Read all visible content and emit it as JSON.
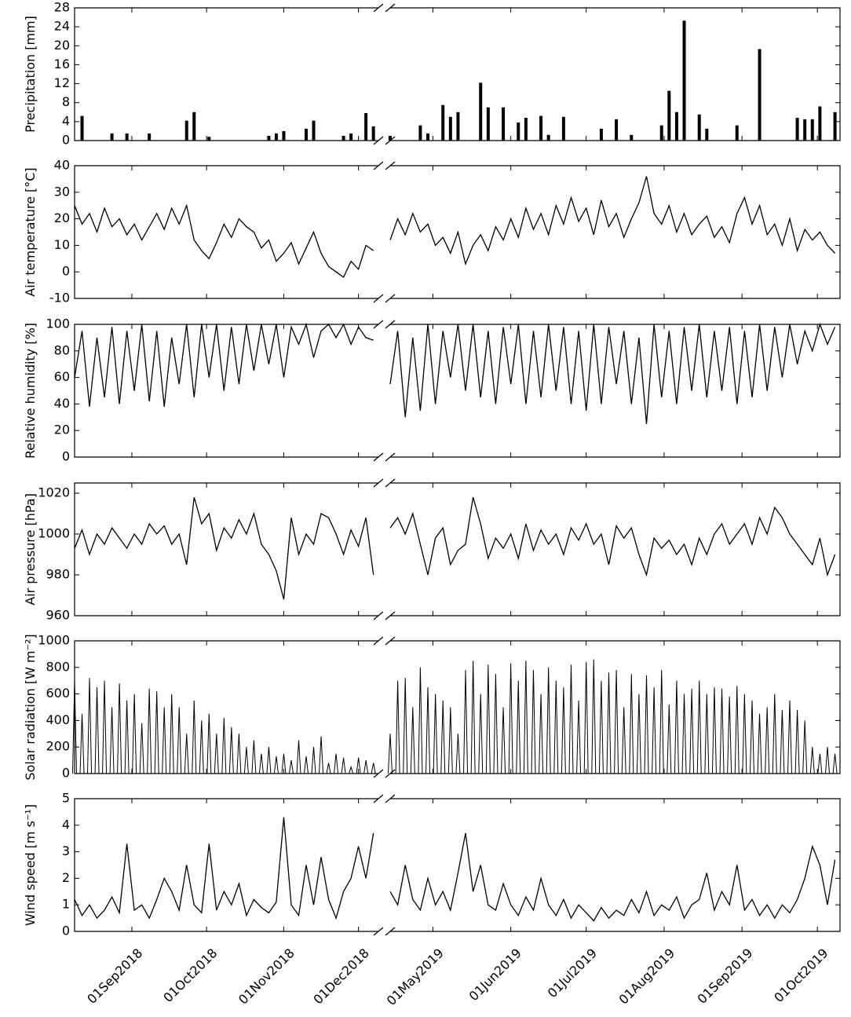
{
  "chart_data": {
    "x": [
      "2018-08-09",
      "2018-08-12",
      "2018-08-15",
      "2018-08-18",
      "2018-08-21",
      "2018-08-24",
      "2018-08-27",
      "2018-08-30",
      "2018-09-02",
      "2018-09-05",
      "2018-09-08",
      "2018-09-11",
      "2018-09-14",
      "2018-09-17",
      "2018-09-20",
      "2018-09-23",
      "2018-09-26",
      "2018-09-29",
      "2018-10-02",
      "2018-10-05",
      "2018-10-08",
      "2018-10-11",
      "2018-10-14",
      "2018-10-17",
      "2018-10-20",
      "2018-10-23",
      "2018-10-26",
      "2018-10-29",
      "2018-11-01",
      "2018-11-04",
      "2018-11-07",
      "2018-11-10",
      "2018-11-13",
      "2018-11-16",
      "2018-11-19",
      "2018-11-22",
      "2018-11-25",
      "2018-11-28",
      "2018-12-01",
      "2018-12-04",
      "2018-12-07",
      "2019-04-14",
      "2019-04-17",
      "2019-04-20",
      "2019-04-23",
      "2019-04-26",
      "2019-04-29",
      "2019-05-02",
      "2019-05-05",
      "2019-05-08",
      "2019-05-11",
      "2019-05-14",
      "2019-05-17",
      "2019-05-20",
      "2019-05-23",
      "2019-05-26",
      "2019-05-29",
      "2019-06-01",
      "2019-06-04",
      "2019-06-07",
      "2019-06-10",
      "2019-06-13",
      "2019-06-16",
      "2019-06-19",
      "2019-06-22",
      "2019-06-25",
      "2019-06-28",
      "2019-07-01",
      "2019-07-04",
      "2019-07-07",
      "2019-07-10",
      "2019-07-13",
      "2019-07-16",
      "2019-07-19",
      "2019-07-22",
      "2019-07-25",
      "2019-07-28",
      "2019-07-31",
      "2019-08-03",
      "2019-08-06",
      "2019-08-09",
      "2019-08-12",
      "2019-08-15",
      "2019-08-18",
      "2019-08-21",
      "2019-08-24",
      "2019-08-27",
      "2019-08-30",
      "2019-09-02",
      "2019-09-05",
      "2019-09-08",
      "2019-09-11",
      "2019-09-14",
      "2019-09-17",
      "2019-09-20",
      "2019-09-23",
      "2019-09-26",
      "2019-09-29",
      "2019-10-02",
      "2019-10-05",
      "2019-10-08"
    ],
    "xsegments": [
      [
        "2018-08-09",
        "2018-12-09"
      ],
      [
        "2019-04-14",
        "2019-10-10"
      ]
    ],
    "xticks": [
      {
        "value": "2018-09-01",
        "label": "01Sep2018"
      },
      {
        "value": "2018-10-01",
        "label": "01Oct2018"
      },
      {
        "value": "2018-11-01",
        "label": "01Nov2018"
      },
      {
        "value": "2018-12-01",
        "label": "01Dec2018"
      },
      {
        "value": "2019-05-01",
        "label": "01May2019"
      },
      {
        "value": "2019-06-01",
        "label": "01Jun2019"
      },
      {
        "value": "2019-07-01",
        "label": "01Jul2019"
      },
      {
        "value": "2019-08-01",
        "label": "01Aug2019"
      },
      {
        "value": "2019-09-01",
        "label": "01Sep2019"
      },
      {
        "value": "2019-10-01",
        "label": "01Oct2019"
      }
    ],
    "panels": [
      {
        "type": "bar",
        "ylabel": "Precipitation [mm]",
        "color": "#000000",
        "ylim": [
          0,
          28
        ],
        "yticks": [
          0,
          4,
          8,
          12,
          16,
          20,
          24,
          28
        ],
        "values": [
          0,
          5.2,
          0,
          0,
          0,
          1.5,
          0,
          1.5,
          0,
          0,
          1.5,
          0,
          0,
          0,
          0,
          4.2,
          6.0,
          0,
          0.8,
          0,
          0,
          0,
          0,
          0,
          0,
          0,
          1.0,
          1.5,
          2.0,
          0,
          0,
          2.5,
          4.2,
          0,
          0,
          0,
          1.0,
          1.5,
          0,
          5.8,
          3.0,
          1.0,
          0,
          0,
          0,
          3.2,
          1.5,
          0,
          7.5,
          5.0,
          6.0,
          0,
          0,
          12.2,
          7.0,
          0,
          7.0,
          0,
          3.8,
          4.8,
          0,
          5.2,
          1.2,
          0,
          5.0,
          0,
          0,
          0,
          0,
          2.5,
          0,
          4.5,
          0,
          1.2,
          0,
          0,
          0,
          3.2,
          10.5,
          6.0,
          25.3,
          0,
          5.5,
          2.5,
          0,
          0,
          0,
          3.2,
          0,
          0,
          19.3,
          0,
          0,
          0,
          0,
          4.8,
          4.5,
          4.5,
          7.2,
          0,
          6.0
        ]
      },
      {
        "type": "line",
        "ylabel": "Air temperature [°C]",
        "color": "#000000",
        "ylim": [
          -10,
          40
        ],
        "yticks": [
          -10,
          0,
          10,
          20,
          30,
          40
        ],
        "values": [
          25,
          18,
          22,
          15,
          24,
          17,
          20,
          14,
          18,
          12,
          17,
          22,
          16,
          24,
          18,
          25,
          12,
          8,
          5,
          11,
          18,
          13,
          20,
          17,
          15,
          9,
          12,
          4,
          7,
          11,
          3,
          9,
          15,
          7,
          2,
          0,
          -2,
          4,
          1,
          10,
          8,
          12,
          20,
          14,
          22,
          15,
          18,
          10,
          13,
          7,
          15,
          3,
          10,
          14,
          8,
          17,
          12,
          20,
          13,
          24,
          16,
          22,
          14,
          25,
          18,
          28,
          19,
          24,
          14,
          27,
          17,
          22,
          13,
          20,
          26,
          36,
          22,
          18,
          25,
          15,
          22,
          14,
          18,
          21,
          13,
          17,
          11,
          22,
          28,
          18,
          25,
          14,
          18,
          10,
          20,
          8,
          16,
          12,
          15,
          10,
          7
        ]
      },
      {
        "type": "line",
        "ylabel": "Relative humidity [%]",
        "color": "#000000",
        "ylim": [
          0,
          100
        ],
        "yticks": [
          0,
          20,
          40,
          60,
          80,
          100
        ],
        "values": [
          60,
          95,
          38,
          90,
          45,
          98,
          40,
          95,
          50,
          100,
          42,
          95,
          38,
          90,
          55,
          100,
          45,
          100,
          60,
          100,
          50,
          98,
          55,
          100,
          65,
          100,
          70,
          100,
          60,
          98,
          85,
          100,
          75,
          95,
          100,
          90,
          100,
          85,
          98,
          90,
          88,
          55,
          95,
          30,
          90,
          35,
          100,
          40,
          95,
          60,
          100,
          50,
          100,
          45,
          95,
          40,
          98,
          55,
          100,
          40,
          95,
          45,
          100,
          50,
          98,
          40,
          95,
          35,
          100,
          40,
          98,
          55,
          95,
          40,
          90,
          25,
          100,
          45,
          95,
          40,
          98,
          50,
          100,
          45,
          95,
          50,
          98,
          40,
          95,
          45,
          100,
          50,
          98,
          60,
          100,
          70,
          95,
          80,
          100,
          85,
          98
        ]
      },
      {
        "type": "line",
        "ylabel": "Air pressure [hPa]",
        "color": "#000000",
        "ylim": [
          960,
          1025
        ],
        "yticks": [
          960,
          980,
          1000,
          1020
        ],
        "values": [
          993,
          1002,
          990,
          1000,
          995,
          1003,
          998,
          993,
          1000,
          995,
          1005,
          1000,
          1004,
          995,
          1000,
          985,
          1018,
          1005,
          1010,
          992,
          1003,
          998,
          1007,
          1000,
          1010,
          995,
          990,
          982,
          968,
          1008,
          990,
          1000,
          995,
          1010,
          1008,
          1000,
          990,
          1002,
          994,
          1008,
          980,
          1003,
          1008,
          1000,
          1010,
          995,
          980,
          998,
          1003,
          985,
          992,
          995,
          1018,
          1005,
          988,
          998,
          993,
          1000,
          988,
          1005,
          992,
          1002,
          995,
          1000,
          990,
          1003,
          997,
          1005,
          995,
          1000,
          985,
          1004,
          998,
          1003,
          990,
          980,
          998,
          993,
          997,
          990,
          995,
          985,
          998,
          990,
          1000,
          1005,
          995,
          1000,
          1005,
          995,
          1008,
          1000,
          1013,
          1008,
          1000,
          995,
          990,
          985,
          998,
          980,
          990
        ]
      },
      {
        "type": "spike",
        "ylabel": "Solar radiation [W m⁻²]",
        "color": "#000000",
        "ylim": [
          0,
          1000
        ],
        "yticks": [
          0,
          200,
          400,
          600,
          800,
          1000
        ],
        "values": [
          700,
          450,
          720,
          650,
          700,
          500,
          680,
          550,
          600,
          380,
          640,
          620,
          500,
          600,
          500,
          300,
          550,
          400,
          450,
          300,
          420,
          350,
          300,
          200,
          250,
          150,
          200,
          130,
          150,
          100,
          250,
          130,
          200,
          280,
          80,
          150,
          120,
          50,
          120,
          100,
          80,
          300,
          700,
          720,
          500,
          800,
          650,
          600,
          550,
          500,
          300,
          780,
          850,
          600,
          820,
          750,
          500,
          830,
          700,
          850,
          780,
          600,
          800,
          700,
          650,
          820,
          550,
          840,
          860,
          700,
          760,
          780,
          500,
          750,
          600,
          740,
          650,
          780,
          520,
          700,
          600,
          640,
          700,
          600,
          650,
          640,
          580,
          660,
          600,
          550,
          450,
          500,
          600,
          480,
          550,
          480,
          400,
          200,
          150,
          200,
          150
        ]
      },
      {
        "type": "line",
        "ylabel": "Wind speed [m s⁻¹]",
        "color": "#000000",
        "ylim": [
          0,
          5
        ],
        "yticks": [
          0,
          1,
          2,
          3,
          4,
          5
        ],
        "values": [
          1.2,
          0.6,
          1.0,
          0.5,
          0.8,
          1.3,
          0.7,
          3.3,
          0.8,
          1.0,
          0.5,
          1.2,
          2.0,
          1.5,
          0.8,
          2.5,
          1.0,
          0.7,
          3.3,
          0.8,
          1.5,
          1.0,
          1.8,
          0.6,
          1.2,
          0.9,
          0.7,
          1.1,
          4.3,
          1.0,
          0.6,
          2.5,
          1.0,
          2.8,
          1.2,
          0.5,
          1.5,
          2.0,
          3.2,
          2.0,
          3.7,
          1.5,
          1.0,
          2.5,
          1.2,
          0.8,
          2.0,
          1.0,
          1.5,
          0.8,
          2.2,
          3.7,
          1.5,
          2.5,
          1.0,
          0.8,
          1.8,
          1.0,
          0.6,
          1.3,
          0.8,
          2.0,
          1.0,
          0.6,
          1.2,
          0.5,
          1.0,
          0.7,
          0.4,
          0.9,
          0.5,
          0.8,
          0.6,
          1.2,
          0.7,
          1.5,
          0.6,
          1.0,
          0.8,
          1.3,
          0.5,
          1.0,
          1.2,
          2.2,
          0.8,
          1.5,
          1.0,
          2.5,
          0.8,
          1.2,
          0.6,
          1.0,
          0.5,
          1.0,
          0.7,
          1.2,
          2.0,
          3.2,
          2.5,
          1.0,
          2.7
        ]
      }
    ]
  }
}
